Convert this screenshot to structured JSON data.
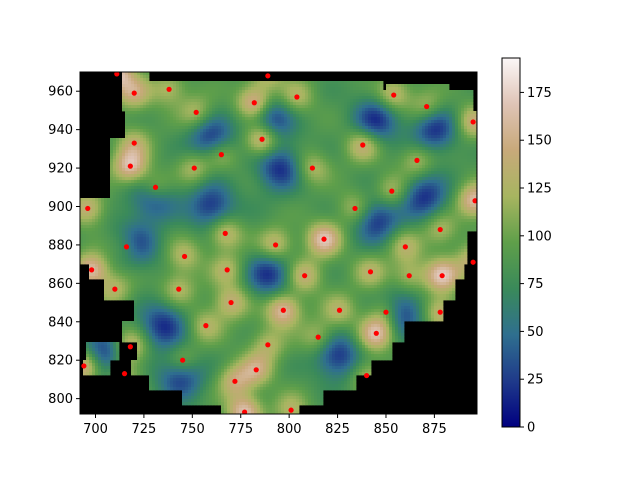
{
  "chart_data": {
    "type": "heatmap",
    "title": "",
    "xlabel": "",
    "ylabel": "",
    "xlim": [
      692,
      897
    ],
    "ylim": [
      792,
      970
    ],
    "x_ticks": [
      700,
      725,
      750,
      775,
      800,
      825,
      850,
      875
    ],
    "y_ticks": [
      800,
      820,
      840,
      860,
      880,
      900,
      920,
      940,
      960
    ],
    "colorbar": {
      "colormap": "gist_earth",
      "range": [
        0,
        193
      ],
      "ticks": [
        0,
        25,
        50,
        75,
        100,
        125,
        150,
        175
      ],
      "stops": [
        "#000080",
        "#1f3a8a",
        "#2f6f8f",
        "#3a8a5a",
        "#5f9f4a",
        "#a7b560",
        "#c8a97a",
        "#dfc4b6",
        "#fbf7f7"
      ]
    },
    "background_value_color": "#000000",
    "sample_points": [
      {
        "x": 711,
        "y": 969
      },
      {
        "x": 738,
        "y": 961
      },
      {
        "x": 789,
        "y": 968
      },
      {
        "x": 720,
        "y": 959
      },
      {
        "x": 804,
        "y": 957
      },
      {
        "x": 782,
        "y": 954
      },
      {
        "x": 854,
        "y": 958
      },
      {
        "x": 871,
        "y": 952
      },
      {
        "x": 752,
        "y": 949
      },
      {
        "x": 895,
        "y": 944
      },
      {
        "x": 786,
        "y": 935
      },
      {
        "x": 720,
        "y": 933
      },
      {
        "x": 838,
        "y": 932
      },
      {
        "x": 765,
        "y": 927
      },
      {
        "x": 866,
        "y": 924
      },
      {
        "x": 718,
        "y": 921
      },
      {
        "x": 751,
        "y": 920
      },
      {
        "x": 812,
        "y": 920
      },
      {
        "x": 731,
        "y": 910
      },
      {
        "x": 853,
        "y": 908
      },
      {
        "x": 896,
        "y": 903
      },
      {
        "x": 696,
        "y": 899
      },
      {
        "x": 834,
        "y": 899
      },
      {
        "x": 878,
        "y": 888
      },
      {
        "x": 767,
        "y": 886
      },
      {
        "x": 818,
        "y": 883
      },
      {
        "x": 716,
        "y": 879
      },
      {
        "x": 793,
        "y": 880
      },
      {
        "x": 860,
        "y": 879
      },
      {
        "x": 746,
        "y": 874
      },
      {
        "x": 698,
        "y": 867
      },
      {
        "x": 768,
        "y": 867
      },
      {
        "x": 842,
        "y": 866
      },
      {
        "x": 808,
        "y": 864
      },
      {
        "x": 862,
        "y": 864
      },
      {
        "x": 879,
        "y": 864
      },
      {
        "x": 895,
        "y": 871
      },
      {
        "x": 710,
        "y": 857
      },
      {
        "x": 743,
        "y": 857
      },
      {
        "x": 770,
        "y": 850
      },
      {
        "x": 797,
        "y": 846
      },
      {
        "x": 826,
        "y": 846
      },
      {
        "x": 878,
        "y": 845
      },
      {
        "x": 850,
        "y": 845
      },
      {
        "x": 757,
        "y": 838
      },
      {
        "x": 845,
        "y": 834
      },
      {
        "x": 815,
        "y": 832
      },
      {
        "x": 789,
        "y": 828
      },
      {
        "x": 718,
        "y": 827
      },
      {
        "x": 745,
        "y": 820
      },
      {
        "x": 694,
        "y": 817
      },
      {
        "x": 783,
        "y": 815
      },
      {
        "x": 715,
        "y": 813
      },
      {
        "x": 840,
        "y": 812
      },
      {
        "x": 772,
        "y": 809
      },
      {
        "x": 777,
        "y": 793
      },
      {
        "x": 801,
        "y": 794
      }
    ],
    "point_color": "#ff0000"
  }
}
